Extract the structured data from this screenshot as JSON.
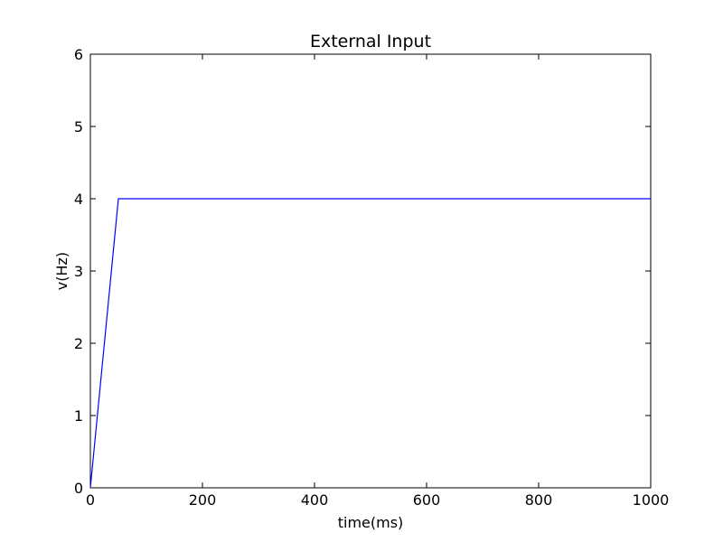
{
  "chart_data": {
    "type": "line",
    "title": "External Input",
    "xlabel": "time(ms)",
    "ylabel": "v(Hz)",
    "xlim": [
      0,
      1000
    ],
    "ylim": [
      0,
      6
    ],
    "xticks": [
      0,
      200,
      400,
      600,
      800,
      1000
    ],
    "yticks": [
      0,
      1,
      2,
      3,
      4,
      5,
      6
    ],
    "grid": false,
    "series": [
      {
        "color": "#0000ff",
        "x": [
          0,
          50,
          1000
        ],
        "y": [
          0,
          4,
          4
        ]
      }
    ]
  }
}
